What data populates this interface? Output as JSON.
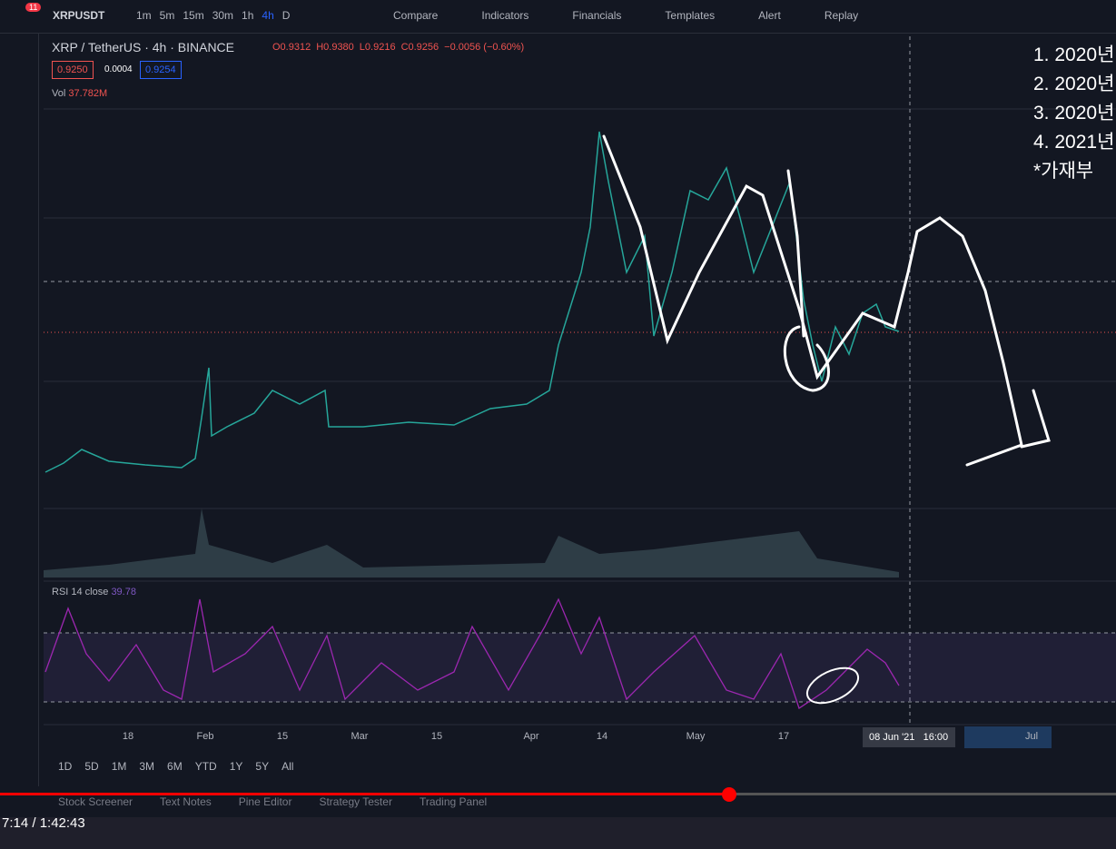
{
  "top_toolbar": {
    "badge": "11",
    "symbol": "XRPUSDT",
    "intervals": [
      "1m",
      "5m",
      "15m",
      "30m",
      "1h",
      "4h",
      "D"
    ],
    "active_interval": "4h",
    "buttons": [
      "Compare",
      "Indicators",
      "Financials",
      "Templates",
      "Alert",
      "Replay"
    ]
  },
  "legend": {
    "title": "XRP / TetherUS · 4h · BINANCE",
    "ohlc": [
      "O0.9312",
      "H0.9380",
      "L0.9216",
      "C0.9256"
    ],
    "change": "−0.0056 (−0.60%)",
    "bid": "0.9250",
    "spread": "0.0004",
    "ask": "0.9254",
    "volume_label": "Vol",
    "volume": "37.782M"
  },
  "rsi": {
    "label": "RSI 14 close",
    "value": "39.78"
  },
  "x_axis": {
    "labels": [
      "18",
      "Feb",
      "15",
      "Mar",
      "15",
      "Apr",
      "14",
      "May",
      "17",
      "Jul"
    ],
    "crosshair": "08 Jun '21   16:00"
  },
  "notes": [
    "1. 2020년",
    "2. 2020년",
    "3. 2020년",
    "4. 2021년",
    "*가재부"
  ],
  "ranges": [
    "1D",
    "5D",
    "1M",
    "3M",
    "6M",
    "YTD",
    "1Y",
    "5Y",
    "All"
  ],
  "bottom_tabs": [
    "Stock Screener",
    "Text Notes",
    "Pine Editor",
    "Strategy Tester",
    "Trading Panel"
  ],
  "video_time": "7:14 / 1:42:43"
}
